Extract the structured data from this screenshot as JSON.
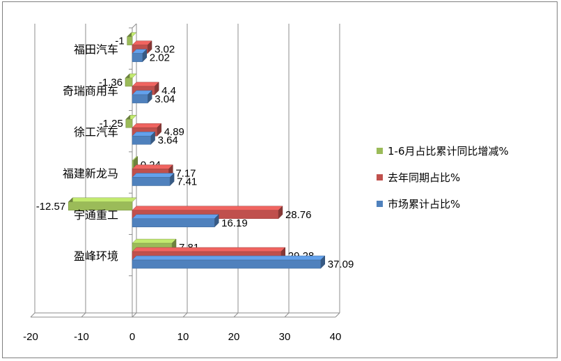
{
  "chart_data": {
    "type": "bar",
    "orientation": "horizontal",
    "style": "3d-clustered",
    "categories": [
      "盈峰环境",
      "宇通重工",
      "福建新龙马",
      "徐工汽车",
      "奇瑞商用车",
      "福田汽车"
    ],
    "series": [
      {
        "name": "市场累计占比%",
        "values": [
          37.09,
          16.19,
          7.41,
          3.64,
          3.04,
          2.02
        ],
        "labels": [
          "37.09",
          "16.19",
          "7.41",
          "3.64",
          "3.04",
          "2.02"
        ],
        "color": "#4f81bd"
      },
      {
        "name": "去年同期占比%",
        "values": [
          29.28,
          28.76,
          7.17,
          4.89,
          4.4,
          3.02
        ],
        "labels": [
          "29.28",
          "28.76",
          "7.17",
          "4.89",
          "4.4",
          "3.02"
        ],
        "color": "#c0504d"
      },
      {
        "name": "1-6月占比累计同比增减%",
        "values": [
          7.81,
          -12.57,
          0.24,
          -1.25,
          -1.36,
          -1
        ],
        "labels": [
          "7.81",
          "-12.57",
          "0.24",
          "-1.25",
          "-1.36",
          "-1"
        ],
        "color": "#9bbb59"
      }
    ],
    "xlim": [
      -20,
      40
    ],
    "xticks": [
      "-20",
      "-10",
      "0",
      "10",
      "20",
      "30",
      "40"
    ],
    "grid": true,
    "legend": "right",
    "legend_order": [
      "1-6月占比累计同比增减%",
      "去年同期占比%",
      "市场累计占比%"
    ]
  }
}
